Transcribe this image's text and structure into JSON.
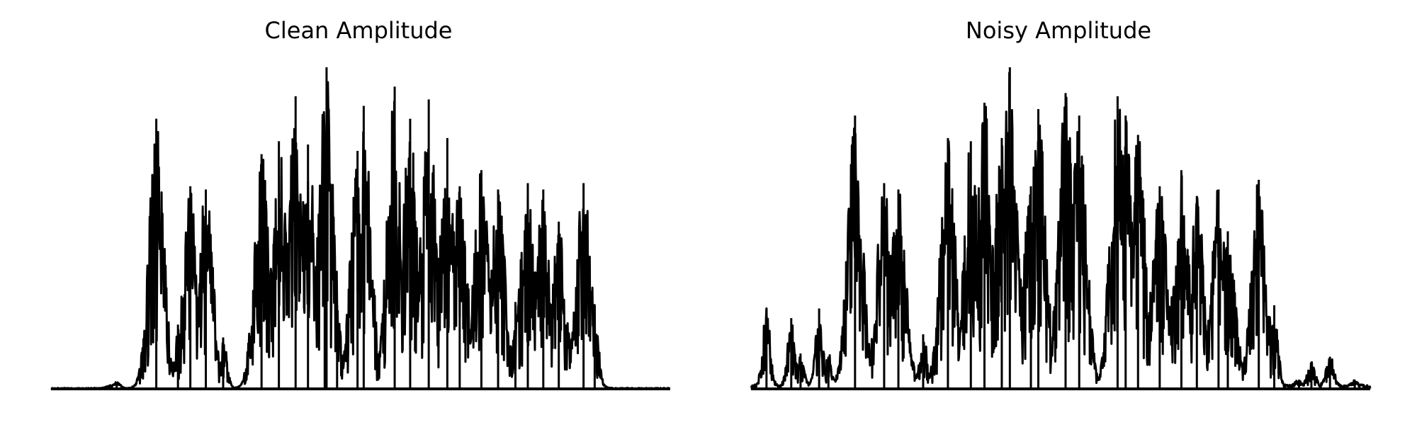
{
  "chart_data": [
    {
      "type": "line",
      "title": "Clean Amplitude",
      "xlabel": "",
      "ylabel": "",
      "axes_visible": false,
      "grid": false,
      "line_color": "#000000",
      "y_range": [
        0,
        1.0
      ],
      "envelope_peaks": [
        {
          "x": 0.096,
          "y": 0.01
        },
        {
          "x": 0.106,
          "y": 0.02
        },
        {
          "x": 0.17,
          "y": 0.84
        },
        {
          "x": 0.205,
          "y": 0.2
        },
        {
          "x": 0.225,
          "y": 0.63
        },
        {
          "x": 0.25,
          "y": 0.62
        },
        {
          "x": 0.278,
          "y": 0.16
        },
        {
          "x": 0.34,
          "y": 0.73
        },
        {
          "x": 0.368,
          "y": 0.77
        },
        {
          "x": 0.395,
          "y": 0.91
        },
        {
          "x": 0.415,
          "y": 0.76
        },
        {
          "x": 0.442,
          "y": 0.78
        },
        {
          "x": 0.445,
          "y": 1.0
        },
        {
          "x": 0.462,
          "y": 0.26
        },
        {
          "x": 0.495,
          "y": 0.74
        },
        {
          "x": 0.505,
          "y": 0.88
        },
        {
          "x": 0.555,
          "y": 0.94
        },
        {
          "x": 0.58,
          "y": 0.84
        },
        {
          "x": 0.61,
          "y": 0.9
        },
        {
          "x": 0.64,
          "y": 0.78
        },
        {
          "x": 0.66,
          "y": 0.63
        },
        {
          "x": 0.695,
          "y": 0.68
        },
        {
          "x": 0.722,
          "y": 0.62
        },
        {
          "x": 0.75,
          "y": 0.27
        },
        {
          "x": 0.77,
          "y": 0.64
        },
        {
          "x": 0.795,
          "y": 0.62
        },
        {
          "x": 0.82,
          "y": 0.52
        },
        {
          "x": 0.86,
          "y": 0.64
        },
        {
          "x": 0.878,
          "y": 0.26
        }
      ]
    },
    {
      "type": "line",
      "title": "Noisy Amplitude",
      "xlabel": "",
      "ylabel": "",
      "axes_visible": false,
      "grid": false,
      "line_color": "#000000",
      "y_range": [
        0,
        1.0
      ],
      "envelope_peaks": [
        {
          "x": 0.025,
          "y": 0.25
        },
        {
          "x": 0.065,
          "y": 0.22
        },
        {
          "x": 0.08,
          "y": 0.11
        },
        {
          "x": 0.11,
          "y": 0.25
        },
        {
          "x": 0.125,
          "y": 0.1
        },
        {
          "x": 0.168,
          "y": 0.85
        },
        {
          "x": 0.215,
          "y": 0.64
        },
        {
          "x": 0.238,
          "y": 0.62
        },
        {
          "x": 0.278,
          "y": 0.17
        },
        {
          "x": 0.318,
          "y": 0.78
        },
        {
          "x": 0.355,
          "y": 0.77
        },
        {
          "x": 0.377,
          "y": 0.89
        },
        {
          "x": 0.405,
          "y": 0.78
        },
        {
          "x": 0.418,
          "y": 1.0
        },
        {
          "x": 0.452,
          "y": 0.63
        },
        {
          "x": 0.464,
          "y": 0.87
        },
        {
          "x": 0.508,
          "y": 0.92
        },
        {
          "x": 0.53,
          "y": 0.85
        },
        {
          "x": 0.592,
          "y": 0.91
        },
        {
          "x": 0.605,
          "y": 0.85
        },
        {
          "x": 0.625,
          "y": 0.79
        },
        {
          "x": 0.66,
          "y": 0.63
        },
        {
          "x": 0.695,
          "y": 0.68
        },
        {
          "x": 0.72,
          "y": 0.6
        },
        {
          "x": 0.755,
          "y": 0.62
        },
        {
          "x": 0.77,
          "y": 0.49
        },
        {
          "x": 0.82,
          "y": 0.65
        },
        {
          "x": 0.845,
          "y": 0.26
        },
        {
          "x": 0.885,
          "y": 0.02
        },
        {
          "x": 0.905,
          "y": 0.08
        },
        {
          "x": 0.935,
          "y": 0.1
        },
        {
          "x": 0.975,
          "y": 0.02
        }
      ]
    }
  ]
}
